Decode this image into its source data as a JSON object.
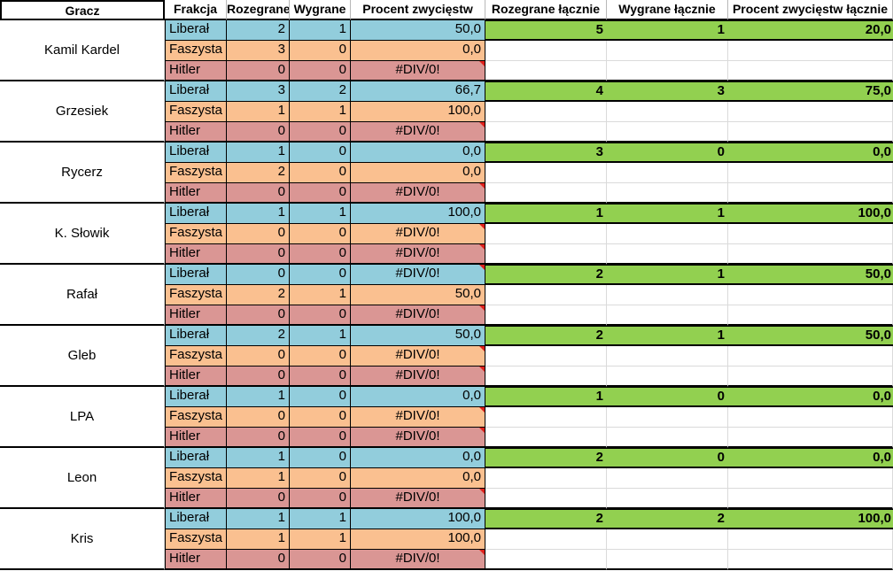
{
  "headers": {
    "gracz": "Gracz",
    "frakcja": "Frakcja",
    "rozegrane": "Rozegrane",
    "wygrane": "Wygrane",
    "procent": "Procent zwycięstw",
    "rozegrane_lacznie": "Rozegrane łącznie",
    "wygrane_lacznie": "Wygrane łącznie",
    "procent_lacznie": "Procent zwycięstw łącznie"
  },
  "colors": {
    "liberal": "#92cddc",
    "faszysta": "#fac090",
    "hitler": "#da9694",
    "total": "#92d050",
    "error_marker": "#e0201b"
  },
  "players": [
    {
      "name": "Kamil Kardel",
      "factions": [
        {
          "name": "Liberał",
          "played": "2",
          "won": "1",
          "pct": "50,0"
        },
        {
          "name": "Faszysta",
          "played": "3",
          "won": "0",
          "pct": "0,0"
        },
        {
          "name": "Hitler",
          "played": "0",
          "won": "0",
          "pct": "#DIV/0!"
        }
      ],
      "total_played": "5",
      "total_won": "1",
      "total_pct": "20,0"
    },
    {
      "name": "Grzesiek",
      "factions": [
        {
          "name": "Liberał",
          "played": "3",
          "won": "2",
          "pct": "66,7"
        },
        {
          "name": "Faszysta",
          "played": "1",
          "won": "1",
          "pct": "100,0"
        },
        {
          "name": "Hitler",
          "played": "0",
          "won": "0",
          "pct": "#DIV/0!"
        }
      ],
      "total_played": "4",
      "total_won": "3",
      "total_pct": "75,0"
    },
    {
      "name": "Rycerz",
      "factions": [
        {
          "name": "Liberał",
          "played": "1",
          "won": "0",
          "pct": "0,0"
        },
        {
          "name": "Faszysta",
          "played": "2",
          "won": "0",
          "pct": "0,0"
        },
        {
          "name": "Hitler",
          "played": "0",
          "won": "0",
          "pct": "#DIV/0!"
        }
      ],
      "total_played": "3",
      "total_won": "0",
      "total_pct": "0,0"
    },
    {
      "name": "K. Słowik",
      "factions": [
        {
          "name": "Liberał",
          "played": "1",
          "won": "1",
          "pct": "100,0"
        },
        {
          "name": "Faszysta",
          "played": "0",
          "won": "0",
          "pct": "#DIV/0!"
        },
        {
          "name": "Hitler",
          "played": "0",
          "won": "0",
          "pct": "#DIV/0!"
        }
      ],
      "total_played": "1",
      "total_won": "1",
      "total_pct": "100,0"
    },
    {
      "name": "Rafał",
      "factions": [
        {
          "name": "Liberał",
          "played": "0",
          "won": "0",
          "pct": "#DIV/0!"
        },
        {
          "name": "Faszysta",
          "played": "2",
          "won": "1",
          "pct": "50,0"
        },
        {
          "name": "Hitler",
          "played": "0",
          "won": "0",
          "pct": "#DIV/0!"
        }
      ],
      "total_played": "2",
      "total_won": "1",
      "total_pct": "50,0"
    },
    {
      "name": "Gleb",
      "factions": [
        {
          "name": "Liberał",
          "played": "2",
          "won": "1",
          "pct": "50,0"
        },
        {
          "name": "Faszysta",
          "played": "0",
          "won": "0",
          "pct": "#DIV/0!"
        },
        {
          "name": "Hitler",
          "played": "0",
          "won": "0",
          "pct": "#DIV/0!"
        }
      ],
      "total_played": "2",
      "total_won": "1",
      "total_pct": "50,0"
    },
    {
      "name": "LPA",
      "factions": [
        {
          "name": "Liberał",
          "played": "1",
          "won": "0",
          "pct": "0,0"
        },
        {
          "name": "Faszysta",
          "played": "0",
          "won": "0",
          "pct": "#DIV/0!"
        },
        {
          "name": "Hitler",
          "played": "0",
          "won": "0",
          "pct": "#DIV/0!"
        }
      ],
      "total_played": "1",
      "total_won": "0",
      "total_pct": "0,0"
    },
    {
      "name": "Leon",
      "factions": [
        {
          "name": "Liberał",
          "played": "1",
          "won": "0",
          "pct": "0,0"
        },
        {
          "name": "Faszysta",
          "played": "1",
          "won": "0",
          "pct": "0,0"
        },
        {
          "name": "Hitler",
          "played": "0",
          "won": "0",
          "pct": "#DIV/0!"
        }
      ],
      "total_played": "2",
      "total_won": "0",
      "total_pct": "0,0"
    },
    {
      "name": "Kris",
      "factions": [
        {
          "name": "Liberał",
          "played": "1",
          "won": "1",
          "pct": "100,0"
        },
        {
          "name": "Faszysta",
          "played": "1",
          "won": "1",
          "pct": "100,0"
        },
        {
          "name": "Hitler",
          "played": "0",
          "won": "0",
          "pct": "#DIV/0!"
        }
      ],
      "total_played": "2",
      "total_won": "2",
      "total_pct": "100,0"
    }
  ]
}
